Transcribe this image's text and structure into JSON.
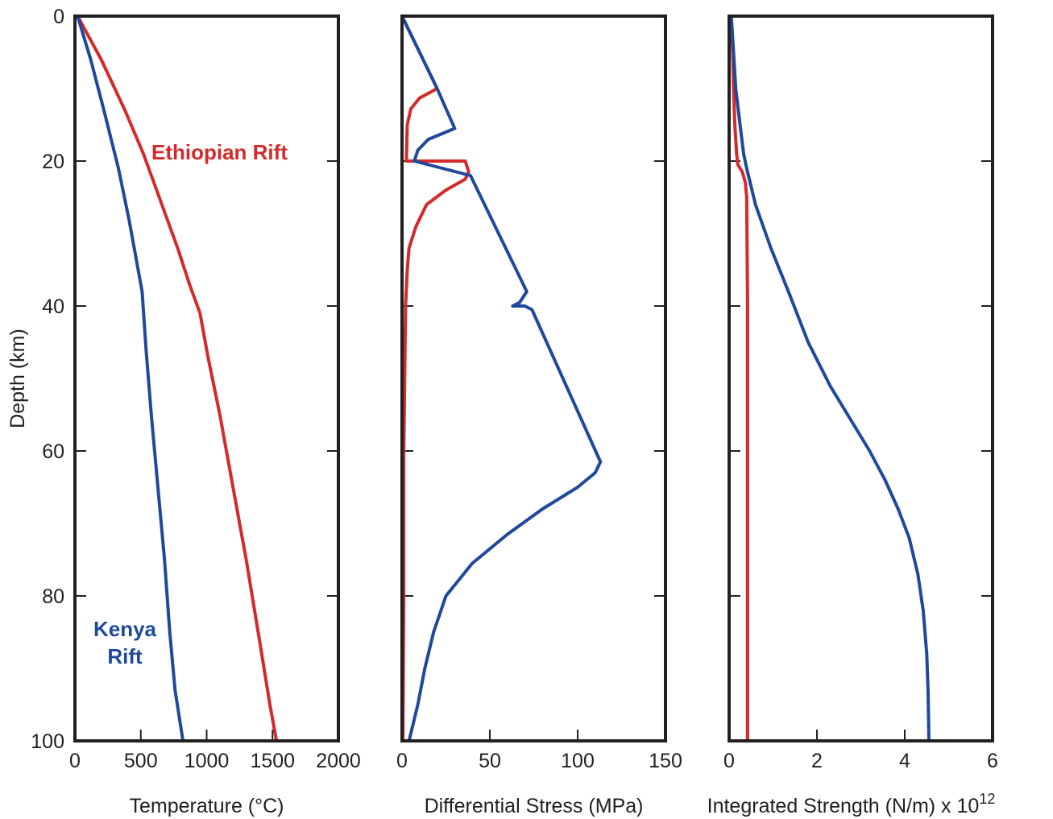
{
  "colors": {
    "ethiopian": "#d42a2a",
    "kenya": "#1f4a9c",
    "axis": "#231f20"
  },
  "y_axis": {
    "label": "Depth (km)",
    "ylim": [
      0,
      100
    ],
    "ticks": [
      "0",
      "20",
      "40",
      "60",
      "80",
      "100"
    ],
    "inverted": true
  },
  "chart_data": [
    {
      "type": "line",
      "xlabel": "Temperature (°C)",
      "xlim": [
        0,
        2000
      ],
      "xticks": [
        "0",
        "500",
        "1000",
        "1500",
        "2000"
      ],
      "annotations": [
        {
          "text": "Ethiopian Rift",
          "series": "ethiopian"
        },
        {
          "lines": [
            "Kenya",
            "Rift"
          ],
          "series": "kenya"
        }
      ],
      "series": [
        {
          "key": "ethiopian",
          "points": [
            [
              20,
              0
            ],
            [
              200,
              6
            ],
            [
              380,
              13
            ],
            [
              520,
              19
            ],
            [
              620,
              24
            ],
            [
              700,
              28
            ],
            [
              780,
              32
            ],
            [
              870,
              37
            ],
            [
              950,
              41
            ],
            [
              1010,
              47
            ],
            [
              1100,
              55
            ],
            [
              1200,
              65
            ],
            [
              1300,
              75
            ],
            [
              1400,
              86
            ],
            [
              1480,
              95
            ],
            [
              1530,
              100
            ]
          ]
        },
        {
          "key": "kenya",
          "points": [
            [
              20,
              0
            ],
            [
              120,
              6
            ],
            [
              220,
              13
            ],
            [
              330,
              21
            ],
            [
              410,
              28
            ],
            [
              460,
              33
            ],
            [
              510,
              38
            ],
            [
              540,
              46
            ],
            [
              580,
              55
            ],
            [
              630,
              65
            ],
            [
              680,
              75
            ],
            [
              720,
              85
            ],
            [
              760,
              93
            ],
            [
              820,
              100
            ]
          ]
        }
      ]
    },
    {
      "type": "line",
      "xlabel": "Differential Stress (MPa)",
      "xlim": [
        0,
        150
      ],
      "xticks": [
        "0",
        "50",
        "100",
        "150"
      ],
      "series": [
        {
          "key": "ethiopian",
          "points": [
            [
              0,
              0
            ],
            [
              20,
              10
            ],
            [
              10,
              11.3
            ],
            [
              5,
              12.8
            ],
            [
              3,
              15
            ],
            [
              2.5,
              20
            ],
            [
              36,
              20
            ],
            [
              38,
              21.5
            ],
            [
              36,
              22.5
            ],
            [
              25,
              24
            ],
            [
              14,
              26
            ],
            [
              8,
              29
            ],
            [
              4,
              32
            ],
            [
              3,
              35
            ],
            [
              2,
              40
            ],
            [
              1.5,
              50
            ],
            [
              1,
              60
            ],
            [
              1,
              80
            ],
            [
              0.5,
              100
            ]
          ]
        },
        {
          "key": "kenya",
          "points": [
            [
              0,
              0
            ],
            [
              20,
              10
            ],
            [
              30,
              15.5
            ],
            [
              15,
              17
            ],
            [
              9,
              18.5
            ],
            [
              7,
              20
            ],
            [
              39,
              22
            ],
            [
              71,
              38
            ],
            [
              67,
              39.5
            ],
            [
              63,
              40
            ],
            [
              70,
              40
            ],
            [
              74,
              40.5
            ],
            [
              113,
              61.5
            ],
            [
              110,
              63
            ],
            [
              100,
              65
            ],
            [
              80,
              68
            ],
            [
              60,
              71.5
            ],
            [
              40,
              75.5
            ],
            [
              25,
              80
            ],
            [
              18,
              85
            ],
            [
              13,
              90
            ],
            [
              9,
              95
            ],
            [
              4,
              100
            ]
          ]
        }
      ]
    },
    {
      "type": "line",
      "xlabel": "Integrated Strength (N/m) x 10",
      "xlabel_superscript": "12",
      "xlim": [
        0,
        6
      ],
      "xticks": [
        "0",
        "2",
        "4",
        "6"
      ],
      "series": [
        {
          "key": "ethiopian",
          "points": [
            [
              0.05,
              0
            ],
            [
              0.08,
              5
            ],
            [
              0.1,
              10
            ],
            [
              0.13,
              15
            ],
            [
              0.17,
              19
            ],
            [
              0.2,
              20.5
            ],
            [
              0.3,
              21.5
            ],
            [
              0.37,
              23
            ],
            [
              0.4,
              25
            ],
            [
              0.42,
              40
            ],
            [
              0.42,
              100
            ]
          ]
        },
        {
          "key": "kenya",
          "points": [
            [
              0.05,
              0
            ],
            [
              0.1,
              5
            ],
            [
              0.15,
              10
            ],
            [
              0.25,
              15
            ],
            [
              0.33,
              19
            ],
            [
              0.4,
              21
            ],
            [
              0.6,
              26
            ],
            [
              0.95,
              32
            ],
            [
              1.35,
              38
            ],
            [
              1.8,
              45
            ],
            [
              2.3,
              51
            ],
            [
              2.8,
              56
            ],
            [
              3.2,
              60
            ],
            [
              3.55,
              64
            ],
            [
              3.85,
              68
            ],
            [
              4.1,
              72
            ],
            [
              4.3,
              77
            ],
            [
              4.42,
              82
            ],
            [
              4.5,
              88
            ],
            [
              4.53,
              93
            ],
            [
              4.55,
              100
            ]
          ]
        }
      ]
    }
  ]
}
